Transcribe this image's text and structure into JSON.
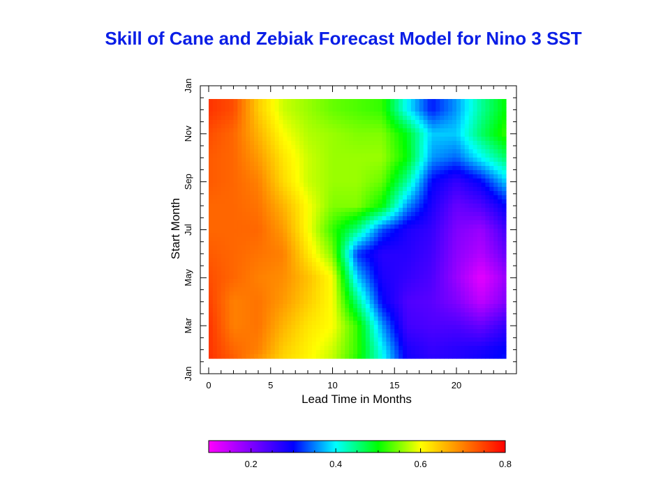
{
  "chart_data": {
    "type": "heatmap",
    "title": "Skill of Cane and Zebiak Forecast Model for Nino 3 SST",
    "xlabel": "Lead Time in Months",
    "ylabel": "Start Month",
    "x_ticks": [
      0,
      5,
      10,
      15,
      20
    ],
    "xlim": [
      0,
      24
    ],
    "y_ticks": [
      "Jan",
      "Mar",
      "May",
      "Jul",
      "Sep",
      "Nov",
      "Jan"
    ],
    "ylim": [
      "Jan",
      "Jan"
    ],
    "colorbar": {
      "ticks": [
        "0.2",
        "0.4",
        "0.6",
        "0.8"
      ],
      "range": [
        0.1,
        0.8
      ],
      "colors": [
        "#ff00ff",
        "#8000ff",
        "#0000ff",
        "#00ffff",
        "#00ff00",
        "#ffff00",
        "#ff8000",
        "#ff0000"
      ]
    },
    "x": [
      0,
      2,
      4,
      6,
      8,
      10,
      12,
      14,
      16,
      18,
      20,
      22,
      24
    ],
    "y": [
      "Jan",
      "Feb",
      "Mar",
      "Apr",
      "May",
      "Jun",
      "Jul",
      "Aug",
      "Sep",
      "Oct",
      "Nov",
      "Dec"
    ],
    "z": [
      [
        0.77,
        0.74,
        0.66,
        0.62,
        0.6,
        0.57,
        0.5,
        0.42,
        0.3,
        0.28,
        0.28,
        0.3,
        0.32
      ],
      [
        0.76,
        0.72,
        0.7,
        0.64,
        0.61,
        0.58,
        0.52,
        0.4,
        0.28,
        0.26,
        0.27,
        0.28,
        0.3
      ],
      [
        0.76,
        0.7,
        0.71,
        0.66,
        0.62,
        0.6,
        0.52,
        0.36,
        0.25,
        0.24,
        0.24,
        0.22,
        0.26
      ],
      [
        0.75,
        0.7,
        0.71,
        0.68,
        0.64,
        0.6,
        0.45,
        0.3,
        0.24,
        0.23,
        0.2,
        0.15,
        0.2
      ],
      [
        0.74,
        0.72,
        0.7,
        0.69,
        0.65,
        0.6,
        0.38,
        0.28,
        0.26,
        0.24,
        0.18,
        0.12,
        0.18
      ],
      [
        0.73,
        0.72,
        0.71,
        0.7,
        0.62,
        0.55,
        0.32,
        0.27,
        0.27,
        0.25,
        0.19,
        0.16,
        0.22
      ],
      [
        0.72,
        0.72,
        0.72,
        0.68,
        0.6,
        0.52,
        0.45,
        0.33,
        0.28,
        0.26,
        0.2,
        0.18,
        0.25
      ],
      [
        0.72,
        0.72,
        0.71,
        0.66,
        0.6,
        0.55,
        0.55,
        0.5,
        0.36,
        0.28,
        0.22,
        0.24,
        0.3
      ],
      [
        0.73,
        0.72,
        0.7,
        0.63,
        0.58,
        0.56,
        0.56,
        0.54,
        0.44,
        0.3,
        0.26,
        0.3,
        0.38
      ],
      [
        0.73,
        0.72,
        0.68,
        0.62,
        0.58,
        0.56,
        0.56,
        0.56,
        0.5,
        0.36,
        0.34,
        0.4,
        0.46
      ],
      [
        0.74,
        0.72,
        0.66,
        0.6,
        0.57,
        0.56,
        0.55,
        0.55,
        0.49,
        0.38,
        0.38,
        0.46,
        0.52
      ],
      [
        0.76,
        0.74,
        0.64,
        0.58,
        0.56,
        0.54,
        0.53,
        0.52,
        0.4,
        0.31,
        0.36,
        0.44,
        0.5
      ]
    ]
  }
}
